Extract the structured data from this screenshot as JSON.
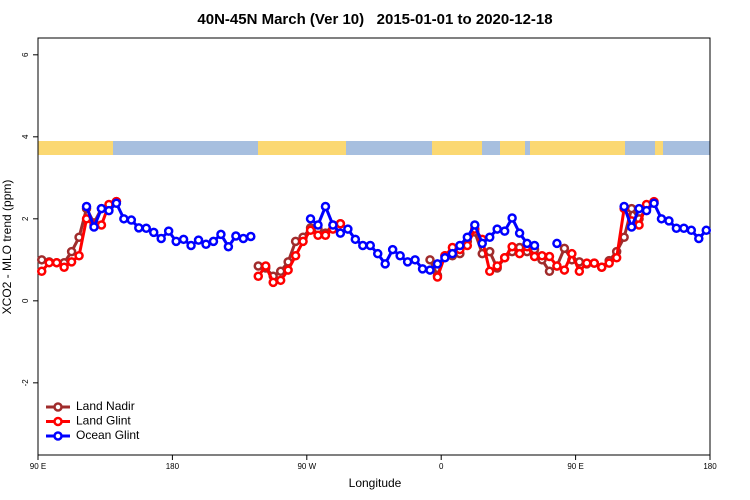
{
  "chart_data": {
    "type": "line",
    "title": "40N-45N March (Ver 10)   2015-01-01 to 2020-12-18",
    "x_label": "Longitude",
    "y_label": "XCO2 - MLO trend (ppm)",
    "xlim": [
      90,
      540
    ],
    "xticks": [
      {
        "value": 90,
        "label": "90 E"
      },
      180,
      {
        "value": 270,
        "label": "90 W"
      },
      {
        "value": 360,
        "label": "0"
      },
      {
        "value": 450,
        "label": "90 E"
      },
      {
        "value": 540,
        "label": "180"
      }
    ],
    "ylim": [
      -3.76,
      6.41
    ],
    "yticks": [
      -2,
      0,
      2,
      4,
      6
    ],
    "legend": "bottomleft",
    "x": [
      92.5,
      97.5,
      102.5,
      107.5,
      112.5,
      117.5,
      122.5,
      127.5,
      132.5,
      137.5,
      142.5,
      147.5,
      152.5,
      157.5,
      162.5,
      167.5,
      172.5,
      177.5,
      182.5,
      187.5,
      192.5,
      197.5,
      202.5,
      207.5,
      212.5,
      217.5,
      222.5,
      227.5,
      232.5,
      237.5,
      242.5,
      247.5,
      252.5,
      257.5,
      262.5,
      267.5,
      272.5,
      277.5,
      282.5,
      287.5,
      292.5,
      297.5,
      302.5,
      307.5,
      312.5,
      317.5,
      322.5,
      327.5,
      332.5,
      337.5,
      342.5,
      347.5,
      352.5,
      357.5,
      362.5,
      367.5,
      372.5,
      377.5,
      382.5,
      387.5,
      392.5,
      397.5,
      402.5,
      407.5,
      412.5,
      417.5,
      422.5,
      427.5,
      432.5,
      437.5,
      442.5,
      447.5,
      452.5,
      457.5,
      462.5,
      467.5,
      472.5,
      477.5,
      482.5,
      487.5,
      492.5,
      497.5,
      502.5,
      507.5,
      512.5,
      517.5,
      522.5,
      527.5,
      532.5,
      537.5
    ],
    "series": [
      {
        "name": "Land Nadir",
        "color": "#a02c2c",
        "values": [
          1.0,
          0.95,
          0.93,
          0.93,
          1.2,
          1.55,
          2.25,
          1.9,
          2.25,
          2.3,
          2.42,
          null,
          null,
          null,
          null,
          null,
          null,
          null,
          null,
          null,
          null,
          null,
          null,
          null,
          null,
          null,
          null,
          null,
          null,
          0.85,
          0.8,
          0.6,
          0.72,
          0.95,
          1.45,
          1.55,
          1.78,
          1.75,
          1.65,
          1.85,
          1.88,
          null,
          null,
          null,
          null,
          null,
          null,
          null,
          null,
          null,
          null,
          null,
          1.0,
          0.62,
          1.1,
          1.1,
          1.15,
          1.45,
          1.68,
          1.15,
          1.2,
          0.8,
          1.05,
          1.2,
          1.3,
          1.2,
          1.25,
          1.0,
          0.72,
          0.85,
          1.28,
          1.0,
          0.95,
          0.9,
          0.92,
          0.82,
          0.98,
          1.2,
          1.55,
          2.25,
          2.0,
          2.25,
          2.38,
          null,
          null,
          null,
          null,
          null,
          null,
          null
        ]
      },
      {
        "name": "Land Glint",
        "color": "#ff0000",
        "values": [
          0.72,
          0.93,
          0.93,
          0.82,
          0.95,
          1.1,
          2.0,
          1.85,
          1.85,
          2.35,
          2.42,
          null,
          null,
          null,
          null,
          null,
          null,
          null,
          null,
          null,
          null,
          null,
          null,
          null,
          null,
          null,
          null,
          null,
          null,
          0.6,
          0.85,
          0.45,
          0.5,
          0.75,
          1.1,
          1.45,
          1.72,
          1.6,
          1.6,
          1.75,
          1.88,
          null,
          null,
          null,
          null,
          null,
          null,
          null,
          null,
          null,
          null,
          null,
          null,
          0.58,
          1.1,
          1.3,
          1.25,
          1.35,
          1.75,
          1.5,
          0.72,
          0.85,
          1.05,
          1.32,
          1.15,
          1.32,
          1.08,
          1.1,
          1.08,
          0.85,
          0.75,
          1.15,
          0.72,
          0.92,
          0.92,
          0.82,
          0.92,
          1.05,
          2.25,
          1.95,
          1.85,
          2.35,
          2.42,
          null,
          null,
          null,
          null,
          null,
          null,
          null
        ]
      },
      {
        "name": "Ocean Glint",
        "color": "#0000ff",
        "values": [
          null,
          null,
          null,
          null,
          null,
          null,
          2.3,
          1.8,
          2.25,
          2.2,
          2.38,
          2.0,
          1.97,
          1.78,
          1.77,
          1.67,
          1.52,
          1.7,
          1.45,
          1.5,
          1.35,
          1.48,
          1.38,
          1.45,
          1.62,
          1.32,
          1.58,
          1.52,
          1.57,
          null,
          null,
          null,
          null,
          null,
          null,
          null,
          2.0,
          1.85,
          2.3,
          1.85,
          1.65,
          1.75,
          1.5,
          1.35,
          1.35,
          1.15,
          0.9,
          1.25,
          1.1,
          0.95,
          1.0,
          0.78,
          0.75,
          0.9,
          1.05,
          1.15,
          1.35,
          1.55,
          1.85,
          1.4,
          1.55,
          1.75,
          1.7,
          2.02,
          1.65,
          1.4,
          1.35,
          null,
          null,
          1.4,
          null,
          null,
          null,
          null,
          null,
          null,
          null,
          null,
          2.3,
          1.8,
          2.25,
          2.2,
          2.38,
          2.0,
          1.95,
          1.77,
          1.77,
          1.72,
          1.52,
          1.72
        ]
      }
    ]
  }
}
